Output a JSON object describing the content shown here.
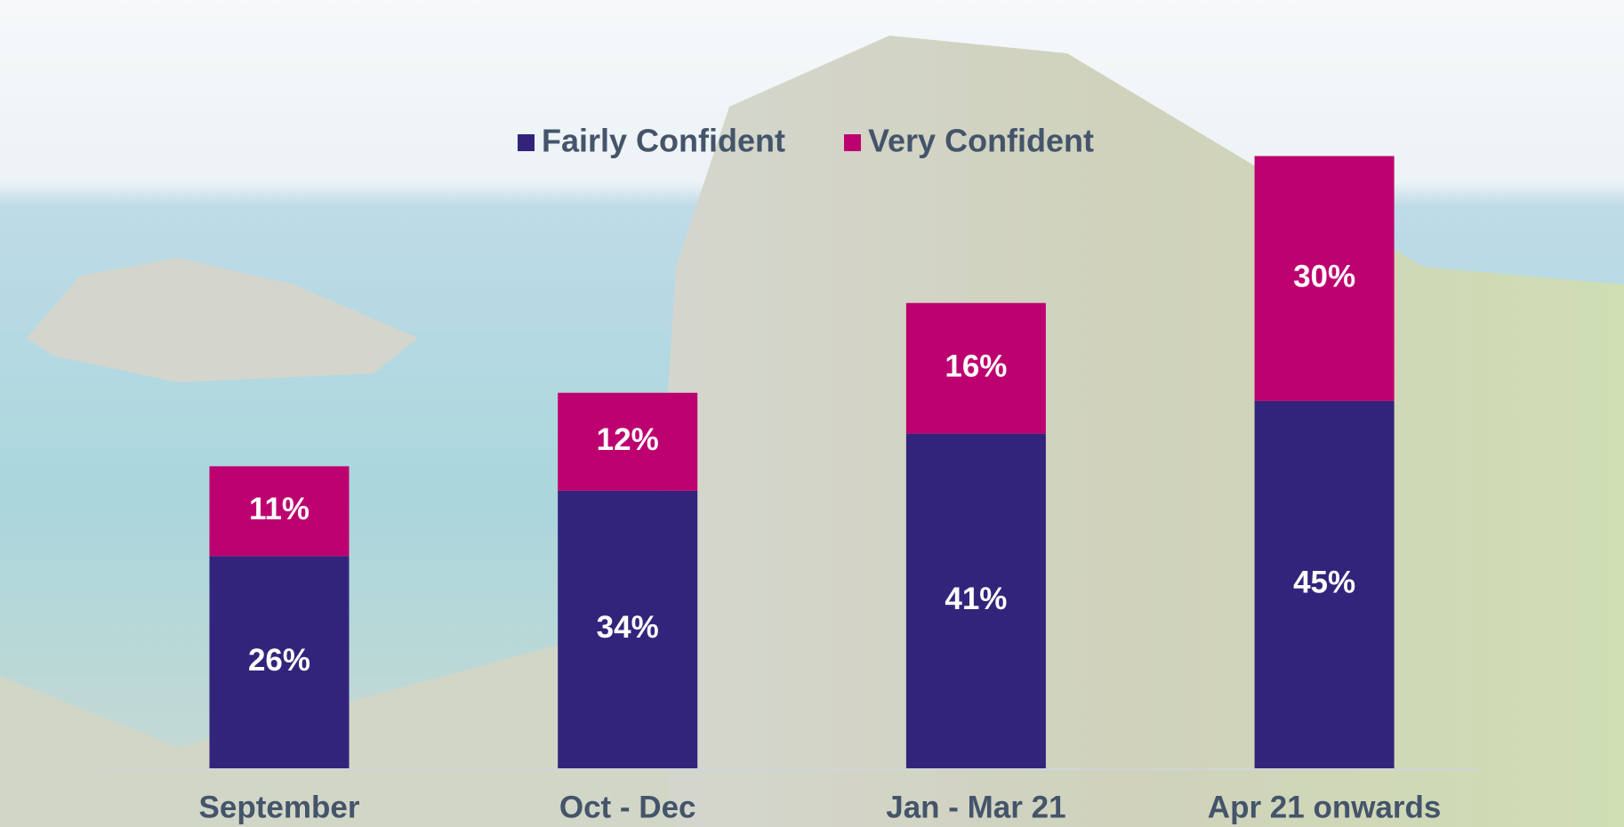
{
  "chart_data": {
    "type": "stacked-bar",
    "categories": [
      "September",
      "Oct - Dec",
      "Jan - Mar 21",
      "Apr 21 onwards"
    ],
    "series": [
      {
        "name": "Fairly Confident",
        "color": "#33247b",
        "values": [
          26,
          34,
          41,
          45
        ],
        "value_labels": [
          "26%",
          "34%",
          "41%",
          "45%"
        ]
      },
      {
        "name": "Very Confident",
        "color": "#bd006f",
        "values": [
          11,
          12,
          16,
          30
        ],
        "value_labels": [
          "11%",
          "12%",
          "16%",
          "30%"
        ]
      }
    ]
  }
}
